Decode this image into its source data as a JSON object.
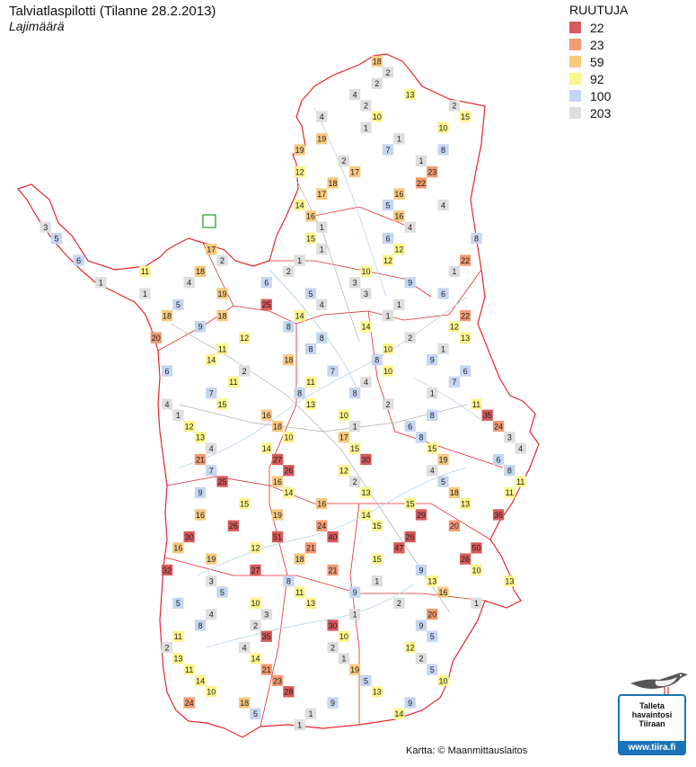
{
  "title": "Talviatlaspilotti (Tilanne 28.2.2013)",
  "subtitle": "Lajimäärä",
  "legend": {
    "title": "RUUTUJA",
    "items": [
      {
        "value": "22",
        "color": "#d85a5a"
      },
      {
        "value": "23",
        "color": "#f29b72"
      },
      {
        "value": "59",
        "color": "#f7c97e"
      },
      {
        "value": "92",
        "color": "#fdf58c"
      },
      {
        "value": "100",
        "color": "#c5d6f2"
      },
      {
        "value": "203",
        "color": "#dedede"
      }
    ]
  },
  "attribution": "Kartta: © Maanmittauslaitos",
  "badge": {
    "lines": [
      "Talleta",
      "havaintosi",
      "Tiiraan"
    ],
    "url": "www.tiira.fi"
  },
  "cell_values": [
    "18",
    "2",
    "2",
    "4",
    "13",
    "2",
    "2",
    "4",
    "10",
    "15",
    "1",
    "10",
    "19",
    "1",
    "19",
    "7",
    "8",
    "2",
    "1",
    "12",
    "17",
    "23",
    "18",
    "22",
    "17",
    "16",
    "14",
    "5",
    "4",
    "16",
    "16",
    "3",
    "1",
    "4",
    "5",
    "15",
    "6",
    "8",
    "17",
    "1",
    "12",
    "6",
    "2",
    "1",
    "12",
    "22",
    "11",
    "18",
    "2",
    "10",
    "1",
    "1",
    "4",
    "6",
    "3",
    "9",
    "1",
    "19",
    "5",
    "3",
    "6",
    "5",
    "25",
    "4",
    "1",
    "18",
    "18",
    "14",
    "1",
    "22",
    "9",
    "8",
    "14",
    "12",
    "20",
    "12",
    "8",
    "2",
    "13",
    "11",
    "8",
    "10",
    "1",
    "14",
    "18",
    "8",
    "9",
    "6",
    "2",
    "7",
    "10",
    "6",
    "11",
    "11",
    "4",
    "7",
    "7",
    "8",
    "8",
    "1",
    "4",
    "15",
    "13",
    "2",
    "11",
    "1",
    "16",
    "10",
    "8",
    "35",
    "12",
    "18",
    "1",
    "6",
    "24",
    "13",
    "10",
    "17",
    "8",
    "3",
    "4",
    "14",
    "15",
    "15",
    "4",
    "21",
    "27",
    "30",
    "19",
    "6",
    "7",
    "26",
    "12",
    "4",
    "8",
    "25",
    "16",
    "2",
    "5",
    "11",
    "9",
    "14",
    "13",
    "18",
    "11",
    "15",
    "16",
    "15",
    "13",
    "16",
    "19",
    "14",
    "29",
    "36",
    "26",
    "24",
    "15",
    "20",
    "30",
    "51",
    "40",
    "26",
    "16",
    "12",
    "21",
    "47",
    "50",
    "19",
    "18",
    "15",
    "26",
    "32",
    "27",
    "21",
    "9",
    "10",
    "3",
    "8",
    "1",
    "13",
    "13",
    "5",
    "11",
    "9",
    "16",
    "5",
    "10",
    "13",
    "2",
    "1",
    "4",
    "3",
    "1",
    "20",
    "8",
    "2",
    "30",
    "9",
    "11",
    "35",
    "10",
    "5",
    "2",
    "4",
    "2",
    "12",
    "13",
    "14",
    "1",
    "2",
    "11",
    "21",
    "19",
    "5",
    "14",
    "23",
    "5",
    "10",
    "10",
    "28",
    "13",
    "24",
    "18",
    "9",
    "9",
    "5",
    "1",
    "14",
    "1"
  ]
}
